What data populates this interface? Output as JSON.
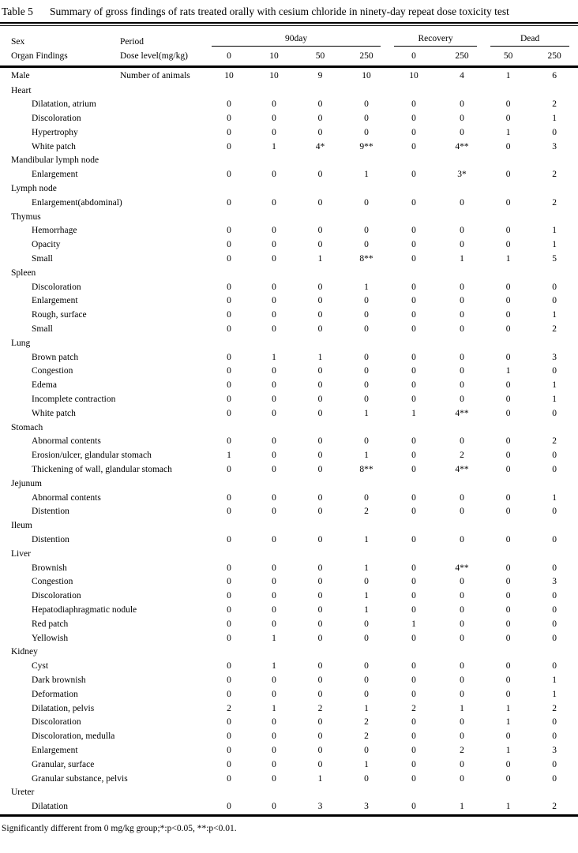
{
  "page": {
    "table_label": "Table 5",
    "title": "Summary of gross findings of rats treated orally with cesium chloride in ninety-day repeat dose toxicity test",
    "footnote": "Significantly different from 0 mg/kg group;*:p<0.05, **:p<0.01."
  },
  "header": {
    "sex_label": "Sex",
    "period_label": "Period",
    "organ_findings_label": "Organ Findings",
    "dose_level_label": "Dose level(mg/kg)",
    "period_groups": [
      {
        "label": "90day",
        "span": 4
      },
      {
        "label": "Recovery",
        "span": 2
      },
      {
        "label": "Dead",
        "span": 2
      }
    ],
    "dose_levels": [
      "0",
      "10",
      "50",
      "250",
      "0",
      "250",
      "50",
      "250"
    ]
  },
  "subject": {
    "sex": "Male",
    "count_label": "Number of animals",
    "counts": [
      "10",
      "10",
      "9",
      "10",
      "10",
      "4",
      "1",
      "6"
    ]
  },
  "organ_groups": [
    {
      "organ": "Heart",
      "findings": [
        {
          "label": "Dilatation, atrium",
          "values": [
            "0",
            "0",
            "0",
            "0",
            "0",
            "0",
            "0",
            "2"
          ]
        },
        {
          "label": "Discoloration",
          "values": [
            "0",
            "0",
            "0",
            "0",
            "0",
            "0",
            "0",
            "1"
          ]
        },
        {
          "label": "Hypertrophy",
          "values": [
            "0",
            "0",
            "0",
            "0",
            "0",
            "0",
            "1",
            "0"
          ]
        },
        {
          "label": "White patch",
          "values": [
            "0",
            "1",
            "4*",
            "9**",
            "0",
            "4**",
            "0",
            "3"
          ]
        }
      ]
    },
    {
      "organ": "Mandibular lymph node",
      "findings": [
        {
          "label": "Enlargement",
          "values": [
            "0",
            "0",
            "0",
            "1",
            "0",
            "3*",
            "0",
            "2"
          ]
        }
      ]
    },
    {
      "organ": "Lymph node",
      "findings": [
        {
          "label": "Enlargement(abdominal)",
          "values": [
            "0",
            "0",
            "0",
            "0",
            "0",
            "0",
            "0",
            "2"
          ]
        }
      ]
    },
    {
      "organ": "Thymus",
      "findings": [
        {
          "label": "Hemorrhage",
          "values": [
            "0",
            "0",
            "0",
            "0",
            "0",
            "0",
            "0",
            "1"
          ]
        },
        {
          "label": "Opacity",
          "values": [
            "0",
            "0",
            "0",
            "0",
            "0",
            "0",
            "0",
            "1"
          ]
        },
        {
          "label": "Small",
          "values": [
            "0",
            "0",
            "1",
            "8**",
            "0",
            "1",
            "1",
            "5"
          ]
        }
      ]
    },
    {
      "organ": "Spleen",
      "findings": [
        {
          "label": "Discoloration",
          "values": [
            "0",
            "0",
            "0",
            "1",
            "0",
            "0",
            "0",
            "0"
          ]
        },
        {
          "label": "Enlargement",
          "values": [
            "0",
            "0",
            "0",
            "0",
            "0",
            "0",
            "0",
            "0"
          ]
        },
        {
          "label": "Rough, surface",
          "values": [
            "0",
            "0",
            "0",
            "0",
            "0",
            "0",
            "0",
            "1"
          ]
        },
        {
          "label": "Small",
          "values": [
            "0",
            "0",
            "0",
            "0",
            "0",
            "0",
            "0",
            "2"
          ]
        }
      ]
    },
    {
      "organ": "Lung",
      "findings": [
        {
          "label": "Brown patch",
          "values": [
            "0",
            "1",
            "1",
            "0",
            "0",
            "0",
            "0",
            "3"
          ]
        },
        {
          "label": "Congestion",
          "values": [
            "0",
            "0",
            "0",
            "0",
            "0",
            "0",
            "1",
            "0"
          ]
        },
        {
          "label": "Edema",
          "values": [
            "0",
            "0",
            "0",
            "0",
            "0",
            "0",
            "0",
            "1"
          ]
        },
        {
          "label": "Incomplete contraction",
          "values": [
            "0",
            "0",
            "0",
            "0",
            "0",
            "0",
            "0",
            "1"
          ]
        },
        {
          "label": "White patch",
          "values": [
            "0",
            "0",
            "0",
            "1",
            "1",
            "4**",
            "0",
            "0"
          ]
        }
      ]
    },
    {
      "organ": "Stomach",
      "findings": [
        {
          "label": "Abnormal contents",
          "values": [
            "0",
            "0",
            "0",
            "0",
            "0",
            "0",
            "0",
            "2"
          ]
        },
        {
          "label": "Erosion/ulcer, glandular stomach",
          "values": [
            "1",
            "0",
            "0",
            "1",
            "0",
            "2",
            "0",
            "0"
          ]
        },
        {
          "label": "Thickening of wall, glandular stomach",
          "values": [
            "0",
            "0",
            "0",
            "8**",
            "0",
            "4**",
            "0",
            "0"
          ]
        }
      ]
    },
    {
      "organ": "Jejunum",
      "findings": [
        {
          "label": "Abnormal contents",
          "values": [
            "0",
            "0",
            "0",
            "0",
            "0",
            "0",
            "0",
            "1"
          ]
        },
        {
          "label": "Distention",
          "values": [
            "0",
            "0",
            "0",
            "2",
            "0",
            "0",
            "0",
            "0"
          ]
        }
      ]
    },
    {
      "organ": "Ileum",
      "findings": [
        {
          "label": "Distention",
          "values": [
            "0",
            "0",
            "0",
            "1",
            "0",
            "0",
            "0",
            "0"
          ]
        }
      ]
    },
    {
      "organ": "Liver",
      "findings": [
        {
          "label": "Brownish",
          "values": [
            "0",
            "0",
            "0",
            "1",
            "0",
            "4**",
            "0",
            "0"
          ]
        },
        {
          "label": "Congestion",
          "values": [
            "0",
            "0",
            "0",
            "0",
            "0",
            "0",
            "0",
            "3"
          ]
        },
        {
          "label": "Discoloration",
          "values": [
            "0",
            "0",
            "0",
            "1",
            "0",
            "0",
            "0",
            "0"
          ]
        },
        {
          "label": "Hepatodiaphragmatic nodule",
          "values": [
            "0",
            "0",
            "0",
            "1",
            "0",
            "0",
            "0",
            "0"
          ]
        },
        {
          "label": "Red patch",
          "values": [
            "0",
            "0",
            "0",
            "0",
            "1",
            "0",
            "0",
            "0"
          ]
        },
        {
          "label": "Yellowish",
          "values": [
            "0",
            "1",
            "0",
            "0",
            "0",
            "0",
            "0",
            "0"
          ]
        }
      ]
    },
    {
      "organ": "Kidney",
      "findings": [
        {
          "label": "Cyst",
          "values": [
            "0",
            "1",
            "0",
            "0",
            "0",
            "0",
            "0",
            "0"
          ]
        },
        {
          "label": "Dark brownish",
          "values": [
            "0",
            "0",
            "0",
            "0",
            "0",
            "0",
            "0",
            "1"
          ]
        },
        {
          "label": "Deformation",
          "values": [
            "0",
            "0",
            "0",
            "0",
            "0",
            "0",
            "0",
            "1"
          ]
        },
        {
          "label": "Dilatation, pelvis",
          "values": [
            "2",
            "1",
            "2",
            "1",
            "2",
            "1",
            "1",
            "2"
          ]
        },
        {
          "label": "Discoloration",
          "values": [
            "0",
            "0",
            "0",
            "2",
            "0",
            "0",
            "1",
            "0"
          ]
        },
        {
          "label": "Discoloration, medulla",
          "values": [
            "0",
            "0",
            "0",
            "2",
            "0",
            "0",
            "0",
            "0"
          ]
        },
        {
          "label": "Enlargement",
          "values": [
            "0",
            "0",
            "0",
            "0",
            "0",
            "2",
            "1",
            "3"
          ]
        },
        {
          "label": "Granular, surface",
          "values": [
            "0",
            "0",
            "0",
            "1",
            "0",
            "0",
            "0",
            "0"
          ]
        },
        {
          "label": "Granular substance, pelvis",
          "values": [
            "0",
            "0",
            "1",
            "0",
            "0",
            "0",
            "0",
            "0"
          ]
        }
      ]
    },
    {
      "organ": "Ureter",
      "findings": [
        {
          "label": "Dilatation",
          "values": [
            "0",
            "0",
            "3",
            "3",
            "0",
            "1",
            "1",
            "2"
          ]
        }
      ]
    }
  ]
}
